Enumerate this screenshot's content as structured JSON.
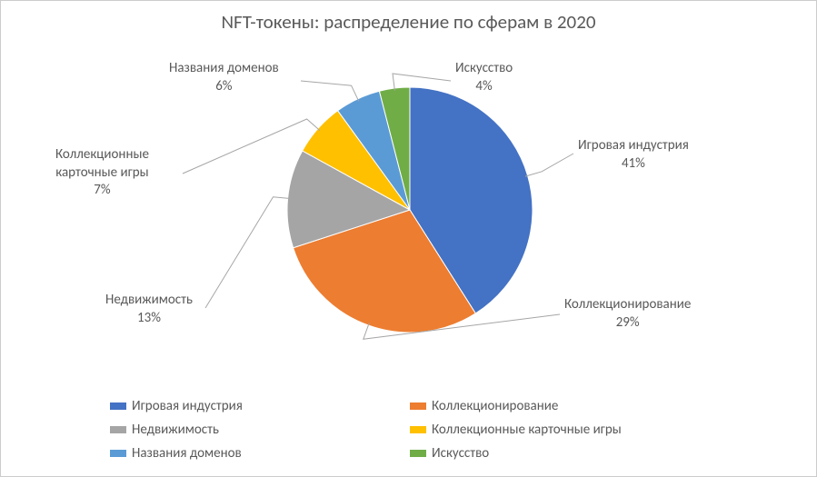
{
  "chart": {
    "type": "pie",
    "title": "NFT-токены: распределение по сферам в 2020",
    "title_color": "#595959",
    "title_fontsize": 21,
    "background_color": "#ffffff",
    "border_color": "#cccccc",
    "label_color": "#595959",
    "label_fontsize": 15,
    "leader_line_color": "#a6a6a6",
    "slices": [
      {
        "label": "Игровая индустрия",
        "value": 41,
        "percent_text": "41%",
        "color": "#4472c4"
      },
      {
        "label": "Коллекционирование",
        "value": 29,
        "percent_text": "29%",
        "color": "#ed7d31"
      },
      {
        "label": "Недвижимость",
        "value": 13,
        "percent_text": "13%",
        "color": "#a5a5a5"
      },
      {
        "label": "Коллекционные карточные игры",
        "value": 7,
        "percent_text": "7%",
        "color": "#ffc000"
      },
      {
        "label": "Названия доменов",
        "value": 6,
        "percent_text": "6%",
        "color": "#5b9bd5"
      },
      {
        "label": "Искусство",
        "value": 4,
        "percent_text": "4%",
        "color": "#70ad47"
      }
    ],
    "legend_items": [
      {
        "label": "Игровая индустрия",
        "color": "#4472c4"
      },
      {
        "label": "Коллекционирование",
        "color": "#ed7d31"
      },
      {
        "label": "Недвижимость",
        "color": "#a5a5a5"
      },
      {
        "label": "Коллекционные карточные игры",
        "color": "#ffc000"
      },
      {
        "label": "Названия доменов",
        "color": "#5b9bd5"
      },
      {
        "label": "Искусство",
        "color": "#70ad47"
      }
    ],
    "callouts": {
      "gaming": {
        "line1": "Игровая индустрия",
        "line2": "41%"
      },
      "collecting": {
        "line1": "Коллекционирование",
        "line2": "29%"
      },
      "realestate": {
        "line1": "Недвижимость",
        "line2": "13%"
      },
      "cards": {
        "line1": "Коллекционные",
        "line2": "карточные игры",
        "line3": "7%"
      },
      "domains": {
        "line1": "Названия доменов",
        "line2": "6%"
      },
      "art": {
        "line1": "Искусство",
        "line2": "4%"
      }
    }
  }
}
